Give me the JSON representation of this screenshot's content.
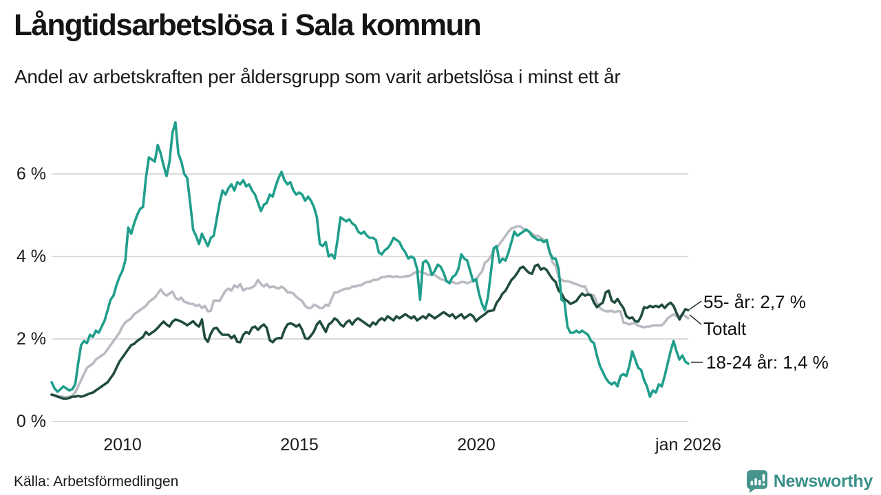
{
  "header": {
    "title": "Långtidsarbetslösa i Sala kommun",
    "subtitle": "Andel av arbetskraften per åldersgrupp som varit arbetslösa i minst ett år"
  },
  "source_label": "Källa: Arbetsförmedlingen",
  "branding": {
    "name": "Newsworthy",
    "logo_color": "#46948d",
    "text_color": "#399089"
  },
  "colors": {
    "grid": "#dcdcdc",
    "axis_text": "#1b1b1b",
    "annotation_line": "#333333"
  },
  "chart_data": {
    "type": "line",
    "title": "Långtidsarbetslösa i Sala kommun",
    "subtitle": "Andel av arbetskraften per åldersgrupp som varit arbetslösa i minst ett år",
    "x_domain": [
      2008.0,
      2026.0
    ],
    "points_per_series": 217,
    "sampling": "monthly, jan 2008 - jan 2026",
    "ylim": [
      0,
      7.5
    ],
    "grid": true,
    "y_ticks": [
      {
        "v": 0,
        "label": "0 %"
      },
      {
        "v": 2,
        "label": "2 %"
      },
      {
        "v": 4,
        "label": "4 %"
      },
      {
        "v": 6,
        "label": "6 %"
      }
    ],
    "x_ticks": [
      {
        "year": 2010,
        "label": "2010"
      },
      {
        "year": 2015,
        "label": "2015"
      },
      {
        "year": 2020,
        "label": "2020"
      },
      {
        "year": 2026,
        "label": "jan 2026"
      }
    ],
    "series": [
      {
        "name": "Totalt",
        "end_label": "Totalt",
        "end_value": 2.5,
        "color": "#b9bbc2",
        "values": [
          0.65,
          0.63,
          0.62,
          0.6,
          0.6,
          0.58,
          0.6,
          0.62,
          0.7,
          0.85,
          1.0,
          1.15,
          1.3,
          1.35,
          1.4,
          1.5,
          1.55,
          1.6,
          1.65,
          1.75,
          1.85,
          1.95,
          2.05,
          2.15,
          2.3,
          2.4,
          2.45,
          2.5,
          2.6,
          2.65,
          2.7,
          2.75,
          2.8,
          2.9,
          2.95,
          3.0,
          3.1,
          3.2,
          3.1,
          3.05,
          3.1,
          3.15,
          3.0,
          2.95,
          3.0,
          2.9,
          2.88,
          2.85,
          2.85,
          2.8,
          2.83,
          2.75,
          2.8,
          2.67,
          2.68,
          2.93,
          2.93,
          2.92,
          3.05,
          3.17,
          3.22,
          3.17,
          3.3,
          3.25,
          3.33,
          3.17,
          3.22,
          3.22,
          3.25,
          3.3,
          3.43,
          3.33,
          3.27,
          3.33,
          3.25,
          3.27,
          3.25,
          3.22,
          3.27,
          3.22,
          3.13,
          3.13,
          3.1,
          3.02,
          2.97,
          2.92,
          2.8,
          2.75,
          2.75,
          2.83,
          2.8,
          2.75,
          2.75,
          2.83,
          2.8,
          2.97,
          3.13,
          3.13,
          3.17,
          3.2,
          3.22,
          3.22,
          3.27,
          3.27,
          3.3,
          3.3,
          3.35,
          3.38,
          3.38,
          3.43,
          3.43,
          3.45,
          3.5,
          3.5,
          3.52,
          3.52,
          3.5,
          3.52,
          3.5,
          3.5,
          3.52,
          3.52,
          3.55,
          3.6,
          3.63,
          3.63,
          3.6,
          3.58,
          3.55,
          3.58,
          3.55,
          3.5,
          3.45,
          3.43,
          3.4,
          3.38,
          3.38,
          3.35,
          3.35,
          3.38,
          3.38,
          3.35,
          3.38,
          3.4,
          3.43,
          3.55,
          3.63,
          3.85,
          3.9,
          4.0,
          4.18,
          4.22,
          4.3,
          4.4,
          4.5,
          4.6,
          4.68,
          4.7,
          4.73,
          4.73,
          4.67,
          4.65,
          4.6,
          4.55,
          4.5,
          4.5,
          4.45,
          4.4,
          4.35,
          4.1,
          3.85,
          3.77,
          3.5,
          3.43,
          3.4,
          3.4,
          3.38,
          3.35,
          3.33,
          3.3,
          3.27,
          3.27,
          3.1,
          3.08,
          3.05,
          2.88,
          2.75,
          2.7,
          2.67,
          2.67,
          2.68,
          2.65,
          2.67,
          2.67,
          2.4,
          2.38,
          2.35,
          2.38,
          2.38,
          2.32,
          2.3,
          2.28,
          2.3,
          2.3,
          2.33,
          2.33,
          2.33,
          2.33,
          2.4,
          2.5,
          2.55,
          2.6,
          2.55,
          2.55,
          2.6,
          2.55,
          2.5
        ]
      },
      {
        "name": "55- år",
        "end_label": "55- år: 2,7 %",
        "end_value": 2.7,
        "color": "#1f4c3e",
        "values": [
          0.65,
          0.63,
          0.6,
          0.58,
          0.55,
          0.55,
          0.57,
          0.6,
          0.6,
          0.62,
          0.6,
          0.62,
          0.65,
          0.68,
          0.7,
          0.75,
          0.8,
          0.85,
          0.9,
          0.95,
          1.05,
          1.15,
          1.3,
          1.45,
          1.55,
          1.65,
          1.75,
          1.85,
          1.88,
          1.95,
          2.0,
          2.05,
          2.17,
          2.1,
          2.15,
          2.2,
          2.27,
          2.35,
          2.42,
          2.35,
          2.3,
          2.42,
          2.47,
          2.45,
          2.42,
          2.38,
          2.33,
          2.38,
          2.43,
          2.35,
          2.3,
          2.47,
          2.02,
          1.93,
          2.13,
          2.25,
          2.27,
          2.17,
          2.1,
          2.1,
          2.1,
          2.02,
          2.08,
          1.93,
          1.92,
          2.1,
          2.17,
          2.13,
          2.27,
          2.3,
          2.22,
          2.3,
          2.35,
          2.27,
          1.97,
          1.92,
          2.0,
          2.02,
          2.02,
          2.22,
          2.35,
          2.38,
          2.35,
          2.3,
          2.35,
          2.22,
          2.02,
          2.0,
          2.08,
          2.18,
          2.35,
          2.43,
          2.3,
          2.17,
          2.35,
          2.4,
          2.5,
          2.45,
          2.35,
          2.3,
          2.4,
          2.45,
          2.35,
          2.45,
          2.5,
          2.45,
          2.4,
          2.35,
          2.3,
          2.4,
          2.35,
          2.45,
          2.5,
          2.45,
          2.55,
          2.5,
          2.45,
          2.55,
          2.5,
          2.55,
          2.6,
          2.55,
          2.5,
          2.55,
          2.45,
          2.5,
          2.55,
          2.5,
          2.6,
          2.55,
          2.5,
          2.55,
          2.6,
          2.65,
          2.6,
          2.55,
          2.6,
          2.5,
          2.55,
          2.6,
          2.5,
          2.55,
          2.6,
          2.55,
          2.43,
          2.5,
          2.55,
          2.6,
          2.67,
          2.68,
          2.7,
          2.88,
          2.97,
          3.1,
          3.17,
          3.3,
          3.43,
          3.5,
          3.6,
          3.72,
          3.75,
          3.67,
          3.6,
          3.58,
          3.77,
          3.8,
          3.68,
          3.72,
          3.67,
          3.55,
          3.45,
          3.38,
          3.17,
          3.1,
          2.97,
          2.92,
          2.85,
          2.88,
          2.92,
          3.02,
          3.1,
          3.05,
          3.08,
          3.05,
          2.88,
          2.77,
          2.83,
          2.88,
          3.13,
          3.17,
          2.93,
          2.88,
          2.97,
          2.85,
          2.75,
          2.55,
          2.5,
          2.52,
          2.43,
          2.42,
          2.55,
          2.77,
          2.75,
          2.8,
          2.77,
          2.8,
          2.77,
          2.83,
          2.75,
          2.83,
          2.88,
          2.8,
          2.63,
          2.47,
          2.6,
          2.72,
          2.7
        ]
      },
      {
        "name": "18-24 år",
        "end_label": "18-24 år: 1,4 %",
        "end_value": 1.4,
        "color": "#1f9e8b",
        "values": [
          0.95,
          0.8,
          0.72,
          0.78,
          0.85,
          0.8,
          0.75,
          0.78,
          0.9,
          1.4,
          1.85,
          1.95,
          1.9,
          2.1,
          2.05,
          2.2,
          2.15,
          2.3,
          2.45,
          2.7,
          2.95,
          3.05,
          3.3,
          3.5,
          3.65,
          3.9,
          4.7,
          4.55,
          4.8,
          5.0,
          5.15,
          5.2,
          5.9,
          6.4,
          6.35,
          6.3,
          6.7,
          6.5,
          6.2,
          5.95,
          6.3,
          7.0,
          7.25,
          6.5,
          6.3,
          6.0,
          5.9,
          5.3,
          4.65,
          4.5,
          4.3,
          4.55,
          4.4,
          4.25,
          4.45,
          4.5,
          4.9,
          5.3,
          5.6,
          5.5,
          5.65,
          5.75,
          5.6,
          5.8,
          5.75,
          5.85,
          5.7,
          5.75,
          5.6,
          5.5,
          5.3,
          5.1,
          5.25,
          5.3,
          5.5,
          5.45,
          5.7,
          5.9,
          6.05,
          5.85,
          5.75,
          5.8,
          5.6,
          5.5,
          5.55,
          5.5,
          5.35,
          5.45,
          5.35,
          5.2,
          4.95,
          4.3,
          4.25,
          4.35,
          4.0,
          4.05,
          3.95,
          4.4,
          4.95,
          4.9,
          4.85,
          4.9,
          4.8,
          4.75,
          4.6,
          4.55,
          4.6,
          4.5,
          4.45,
          4.45,
          4.4,
          4.1,
          4.05,
          4.15,
          4.2,
          4.3,
          4.45,
          4.4,
          4.35,
          4.2,
          4.1,
          3.95,
          4.0,
          3.95,
          3.7,
          2.95,
          3.85,
          3.9,
          3.8,
          3.55,
          3.65,
          3.8,
          3.75,
          3.6,
          3.4,
          3.35,
          3.5,
          3.55,
          3.7,
          4.05,
          3.95,
          3.9,
          3.65,
          3.4,
          3.45,
          3.1,
          2.85,
          2.7,
          3.0,
          3.6,
          4.2,
          4.25,
          3.85,
          3.95,
          3.9,
          4.1,
          4.35,
          4.6,
          4.5,
          4.55,
          4.6,
          4.65,
          4.6,
          4.5,
          4.45,
          4.4,
          4.4,
          4.35,
          4.4,
          4.1,
          3.95,
          3.95,
          3.7,
          2.95,
          2.9,
          2.3,
          2.15,
          2.15,
          2.2,
          2.15,
          2.2,
          2.15,
          2.1,
          1.95,
          1.9,
          1.6,
          1.35,
          1.2,
          1.05,
          0.95,
          0.9,
          0.95,
          0.85,
          1.1,
          1.15,
          1.1,
          1.35,
          1.7,
          1.5,
          1.3,
          1.25,
          1.0,
          0.85,
          0.6,
          0.75,
          0.7,
          0.9,
          0.85,
          1.1,
          1.4,
          1.7,
          1.95,
          1.7,
          1.5,
          1.6,
          1.45,
          1.4
        ]
      }
    ]
  }
}
